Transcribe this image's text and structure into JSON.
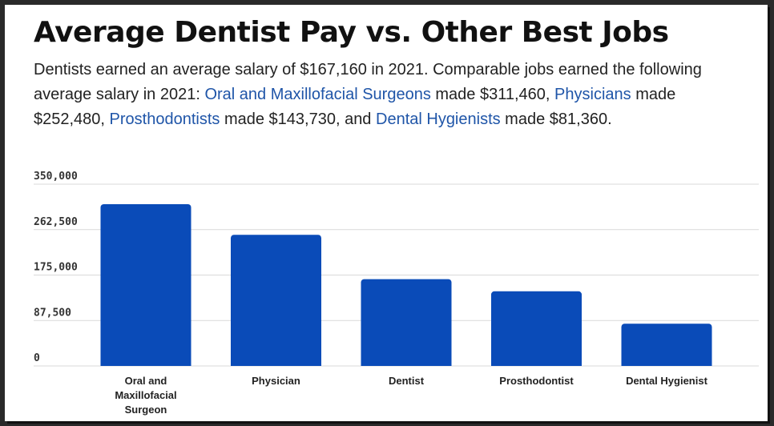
{
  "title": "Average Dentist Pay vs. Other Best Jobs",
  "description": {
    "p1": "Dentists earned an average salary of $167,160 in 2021. Comparable jobs earned the following average salary in 2021: ",
    "link1": "Oral and Maxillofacial Surgeons",
    "p2": " made $311,460, ",
    "link2": "Physicians",
    "p3": " made $252,480, ",
    "link3": "Prosthodontists",
    "p4": " made $143,730, and ",
    "link4": "Dental Hygienists",
    "p5": " made $81,360."
  },
  "colors": {
    "bar": "#0a4bb8",
    "link": "#1f55a8",
    "grid": "#d9d9d9"
  },
  "chart_data": {
    "type": "bar",
    "categories": [
      "Oral and Maxillofacial Surgeon",
      "Physician",
      "Dentist",
      "Prosthodontist",
      "Dental Hygienist"
    ],
    "category_lines": [
      [
        "Oral and",
        "Maxillofacial",
        "Surgeon"
      ],
      [
        "Physician"
      ],
      [
        "Dentist"
      ],
      [
        "Prosthodontist"
      ],
      [
        "Dental Hygienist"
      ]
    ],
    "values": [
      311460,
      252480,
      167160,
      143730,
      81360
    ],
    "ylim": [
      0,
      350000
    ],
    "yticks": [
      0,
      87500,
      175000,
      262500,
      350000
    ],
    "ytick_labels": [
      "0",
      "87,500",
      "175,000",
      "262,500",
      "350,000"
    ],
    "grid": true,
    "legend": "none"
  }
}
